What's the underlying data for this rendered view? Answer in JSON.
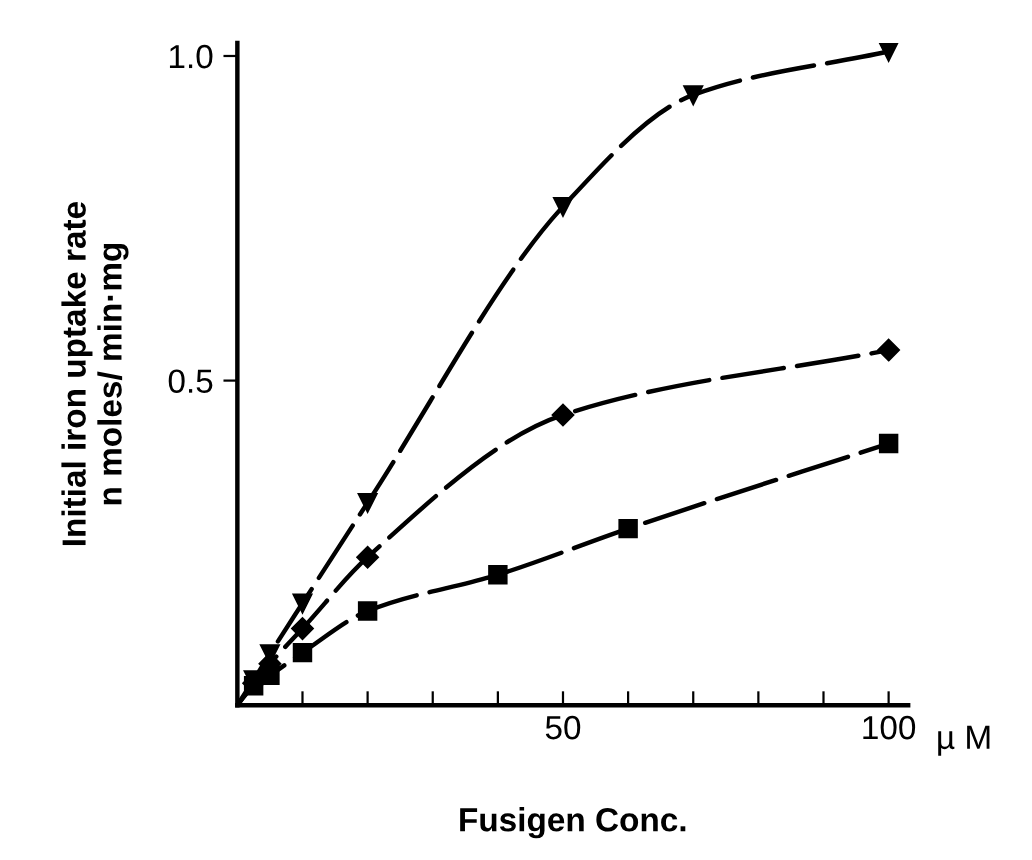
{
  "chart_data": {
    "type": "line",
    "xlabel": "Fusigen Conc.",
    "ylabel": "Initial iron uptake rate\nn moles/ min·mg",
    "xlim": [
      0,
      103
    ],
    "ylim": [
      0,
      1.02
    ],
    "xticks": [
      {
        "value": 10,
        "label": null
      },
      {
        "value": 20,
        "label": null
      },
      {
        "value": 30,
        "label": null
      },
      {
        "value": 40,
        "label": null
      },
      50,
      {
        "value": 60,
        "label": null
      },
      {
        "value": 70,
        "label": null
      },
      {
        "value": 80,
        "label": null
      },
      {
        "value": 90,
        "label": null
      },
      100
    ],
    "yticks": [
      0.5,
      {
        "value": 1.0,
        "label": "1.0"
      }
    ],
    "grid": false,
    "legend": false,
    "line_style": "dashed",
    "annotations": [
      "µ M"
    ],
    "series": [
      {
        "color": "#000000",
        "marker": "triangle",
        "x": [
          0,
          2.5,
          5,
          10,
          20,
          50,
          70,
          100
        ],
        "values": [
          0,
          0.039,
          0.079,
          0.157,
          0.312,
          0.768,
          0.94,
          1.007
        ]
      },
      {
        "color": "#000000",
        "marker": "diamond",
        "x": [
          0,
          2.5,
          5,
          10,
          20,
          50,
          100
        ],
        "values": [
          0,
          0.034,
          0.064,
          0.118,
          0.228,
          0.447,
          0.547
        ]
      },
      {
        "color": "#000000",
        "marker": "square",
        "x": [
          0,
          2.5,
          5,
          10,
          20,
          40,
          60,
          100
        ],
        "values": [
          0,
          0.03,
          0.046,
          0.081,
          0.145,
          0.201,
          0.272,
          0.403
        ]
      }
    ]
  }
}
